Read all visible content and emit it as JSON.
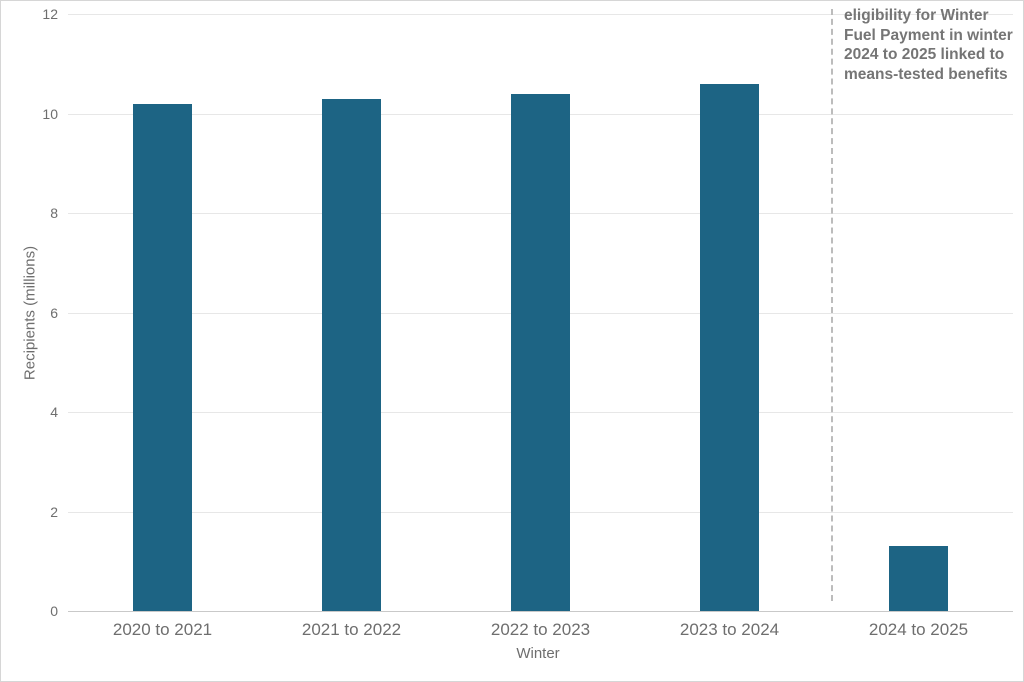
{
  "chart_data": {
    "type": "bar",
    "title": "",
    "categories": [
      "2020 to 2021",
      "2021 to 2022",
      "2022 to 2023",
      "2023 to 2024",
      "2024 to 2025"
    ],
    "values": [
      10.2,
      10.3,
      10.4,
      10.6,
      1.3
    ],
    "xlabel": "Winter",
    "ylabel": "Recipients (millions)",
    "ylim": [
      0,
      12
    ],
    "yticks": [
      0,
      2,
      4,
      6,
      8,
      10,
      12
    ],
    "grid": "horizontal",
    "legend": "none",
    "bar_color": "#1d6484",
    "annotation": {
      "text": "eligibility for Winter Fuel Payment in winter 2024 to 2025 linked to means-tested benefits",
      "placement": "top-right, right of dashed divider before 2024 to 2025 bar"
    }
  },
  "colors": {
    "bar": "#1d6484",
    "gridline": "#e7e7e7",
    "axis_line": "#c9c9c9",
    "text": "#6e6e6e",
    "annotation_text": "#757575",
    "divider": "#bcbcbc"
  }
}
